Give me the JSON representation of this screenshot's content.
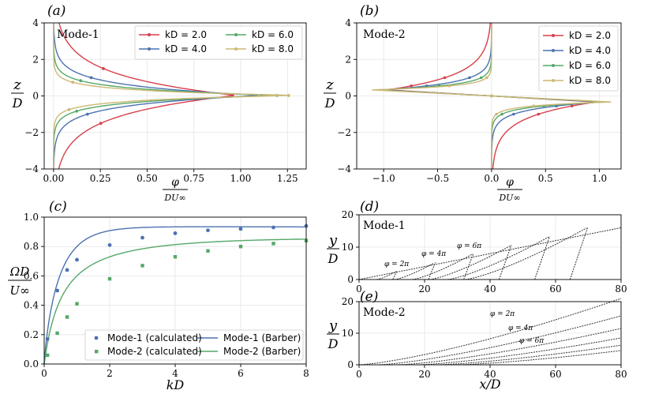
{
  "panels": {
    "a": {
      "letter": "(a)",
      "mode": "Mode-1",
      "ylabel_num": "z",
      "ylabel_den": "D",
      "xlabel_num": "φ",
      "xlabel_den": "DU∞"
    },
    "b": {
      "letter": "(b)",
      "mode": "Mode-2",
      "ylabel_num": "z",
      "ylabel_den": "D",
      "xlabel_num": "φ",
      "xlabel_den": "DU∞"
    },
    "c": {
      "letter": "(c)",
      "ylabel_num": "ΩD",
      "ylabel_den": "U∞",
      "xlabel": "kD"
    },
    "d": {
      "letter": "(d)",
      "mode": "Mode-1",
      "ylabel_num": "y",
      "ylabel_den": "D"
    },
    "e": {
      "letter": "(e)",
      "mode": "Mode-2",
      "ylabel_num": "y",
      "ylabel_den": "D",
      "xlabel": "x/D"
    }
  },
  "colors": {
    "kD2": "#d6404a",
    "kD4": "#4c72b0",
    "kD6": "#55a868",
    "kD8": "#ccb974"
  },
  "chart_data": [
    {
      "id": "a",
      "type": "line",
      "xlim": [
        -0.05,
        1.35
      ],
      "ylim": [
        -4,
        4
      ],
      "grid": true,
      "legend_position": "top-right",
      "xticks": [
        "0.00",
        "0.25",
        "0.50",
        "0.75",
        "1.00",
        "1.25"
      ],
      "yticks": [
        "−4",
        "−2",
        "0",
        "2",
        "4"
      ],
      "series": [
        {
          "name": "kD = 2.0",
          "peak": 0.97
        },
        {
          "name": "kD = 4.0",
          "peak": 1.11
        },
        {
          "name": "kD = 6.0",
          "peak": 1.21
        },
        {
          "name": "kD = 8.0",
          "peak": 1.29
        }
      ]
    },
    {
      "id": "b",
      "type": "line",
      "xlim": [
        -1.25,
        1.2
      ],
      "ylim": [
        -4,
        4
      ],
      "grid": true,
      "legend_position": "top-right",
      "xticks": [
        "−1.0",
        "−0.5",
        "0.0",
        "0.5",
        "1.0"
      ],
      "yticks": [
        "−4",
        "−2",
        "0",
        "2",
        "4"
      ],
      "series": [
        {
          "name": "kD = 2.0",
          "peak": 0.97
        },
        {
          "name": "kD = 4.0",
          "peak": 1.02
        },
        {
          "name": "kD = 6.0",
          "peak": 1.07
        },
        {
          "name": "kD = 8.0",
          "peak": 1.12
        }
      ]
    },
    {
      "id": "c",
      "type": "scatter",
      "xlim": [
        0,
        8
      ],
      "ylim": [
        0,
        1
      ],
      "grid": true,
      "legend_position": "bottom-right",
      "xticks": [
        "0",
        "2",
        "4",
        "6",
        "8"
      ],
      "yticks": [
        "0.0",
        "0.2",
        "0.4",
        "0.6",
        "0.8",
        "1.0"
      ],
      "series": [
        {
          "name": "Mode-1 (calculated)",
          "kind": "points",
          "x": [
            0.1,
            0.4,
            0.7,
            1.0,
            2.0,
            3.0,
            4.0,
            5.0,
            6.0,
            7.0,
            8.0
          ],
          "y": [
            0.17,
            0.5,
            0.64,
            0.71,
            0.81,
            0.86,
            0.89,
            0.91,
            0.92,
            0.93,
            0.94
          ]
        },
        {
          "name": "Mode-2 (calculated)",
          "kind": "points",
          "x": [
            0.1,
            0.4,
            0.7,
            1.0,
            2.0,
            3.0,
            4.0,
            5.0,
            6.0,
            7.0,
            8.0
          ],
          "y": [
            0.06,
            0.21,
            0.32,
            0.41,
            0.58,
            0.67,
            0.73,
            0.77,
            0.8,
            0.82,
            0.84
          ]
        },
        {
          "name": "Mode-1 (Barber)",
          "kind": "line"
        },
        {
          "name": "Mode-2 (Barber)",
          "kind": "line"
        }
      ]
    },
    {
      "id": "d",
      "type": "line",
      "xlim": [
        0,
        80
      ],
      "ylim": [
        0,
        20
      ],
      "grid": true,
      "xticks": [
        "0",
        "20",
        "40",
        "60",
        "80"
      ],
      "yticks": [
        "0",
        "10",
        "20"
      ],
      "annotations": [
        "φ = 2π",
        "φ = 4π",
        "φ = 6π"
      ]
    },
    {
      "id": "e",
      "type": "line",
      "xlim": [
        0,
        80
      ],
      "ylim": [
        0,
        20
      ],
      "grid": true,
      "xticks": [
        "0",
        "20",
        "40",
        "60",
        "80"
      ],
      "yticks": [
        "0",
        "10",
        "20"
      ],
      "annotations": [
        "φ = 2π",
        "φ = 4π",
        "φ = 6π"
      ]
    }
  ]
}
